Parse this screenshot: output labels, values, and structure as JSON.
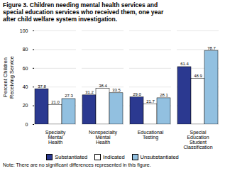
{
  "chart_data": {
    "type": "bar",
    "title": "Figure 3. Children needing mental health services and\nspecial education services who received them, one year\nafter child welfare system investigation.",
    "categories": [
      "Specialty\nMental\nHealth",
      "Nonspecialty\nMental\nHealth",
      "Educational\nTesting",
      "Special\nEducation\nStudent\nClassification"
    ],
    "series": [
      {
        "name": "Substantiated",
        "color": "#2b3990",
        "values": [
          37.8,
          31.2,
          29.0,
          61.4
        ],
        "value_labels": [
          "37.8",
          "31.2",
          "29.0",
          "61.4"
        ]
      },
      {
        "name": "Indicated",
        "color": "#ffffff",
        "values": [
          21.0,
          38.4,
          21.7,
          48.9
        ],
        "value_labels": [
          "21.0",
          "38.4",
          "21.7",
          "48.9"
        ]
      },
      {
        "name": "Unsubstantiated",
        "color": "#92c0e0",
        "values": [
          27.3,
          33.5,
          28.1,
          78.7
        ],
        "value_labels": [
          "27.3",
          "33.5",
          "28.1",
          "78.7"
        ]
      }
    ],
    "ylabel": "Percent Children\nReceiving Service",
    "ylim": [
      0,
      100
    ],
    "yticks": [
      0,
      20,
      40,
      60,
      80,
      100
    ],
    "grid": true,
    "data_labels": true,
    "legend": "bottom",
    "note": "Note: There are no significant differences represented in this figure."
  }
}
